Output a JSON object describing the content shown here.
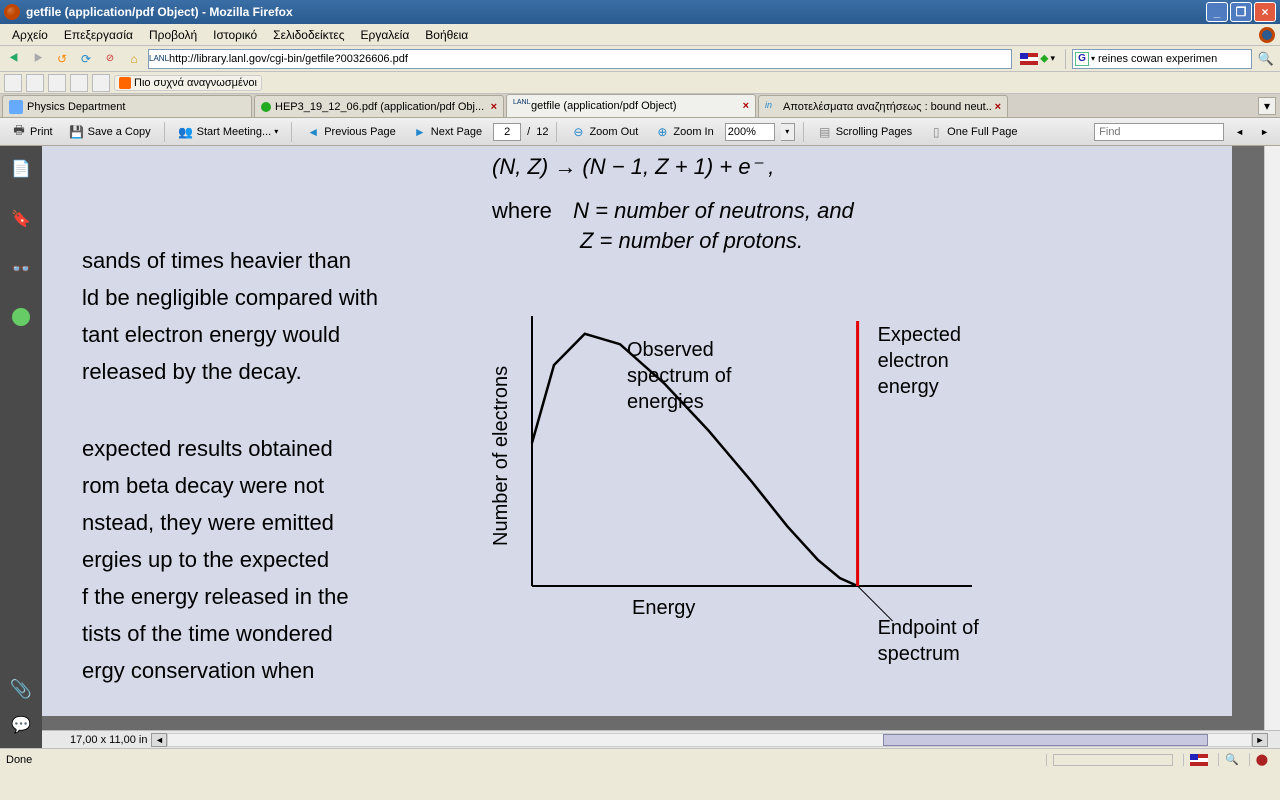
{
  "window": {
    "title": "getfile (application/pdf Object) - Mozilla Firefox"
  },
  "menu": {
    "items": [
      "Αρχείο",
      "Επεξεργασία",
      "Προβολή",
      "Ιστορικό",
      "Σελιδοδείκτες",
      "Εργαλεία",
      "Βοήθεια"
    ]
  },
  "nav": {
    "url": "http://library.lanl.gov/cgi-bin/getfile?00326606.pdf",
    "search_value": "reines cowan experimen"
  },
  "bookmarks": {
    "item_label": "Πιο συχνά αναγνωσμένοι"
  },
  "tabs": [
    {
      "label": "Physics Department",
      "icon": "phys",
      "active": false,
      "closable": false
    },
    {
      "label": "HEP3_19_12_06.pdf (application/pdf Obj...",
      "icon": "dot",
      "active": false,
      "closable": true
    },
    {
      "label": "getfile (application/pdf Object)",
      "icon": "lanl",
      "active": true,
      "closable": true
    },
    {
      "label": "Αποτελέσματα αναζητήσεως : bound neut...",
      "icon": "in",
      "active": false,
      "closable": true
    }
  ],
  "pdf_toolbar": {
    "print": "Print",
    "save": "Save a Copy",
    "meeting": "Start Meeting...",
    "prev": "Previous Page",
    "next": "Next Page",
    "page_current": "2",
    "page_total": "12",
    "zoom_out": "Zoom Out",
    "zoom_in": "Zoom In",
    "zoom_value": "200%",
    "scrolling": "Scrolling Pages",
    "onefull": "One Full Page",
    "find_placeholder": "Find"
  },
  "document": {
    "formula": "(N, Z) → (N − 1, Z + 1) + e⁻ ,",
    "where_label": "where",
    "where_n": "N = number of neutrons, and",
    "where_z": "Z = number of protons.",
    "para1": [
      "sands of times heavier than",
      "ld be negligible compared with",
      "tant electron energy would",
      "released by the decay."
    ],
    "para2": [
      "expected results obtained",
      "rom beta decay were not",
      "nstead, they were emitted",
      "ergies up to the expected",
      "f the energy released in the",
      "tists of the time wondered",
      "ergy conservation when"
    ],
    "chart": {
      "type": "line",
      "xlabel": "Energy",
      "ylabel": "Number of electrons",
      "label_fontsize": 20,
      "curve_label": "Observed\nspectrum of\nenergies",
      "expected_label": "Expected\nelectron\nenergy",
      "endpoint_label": "Endpoint of\nspectrum",
      "axis_color": "#000000",
      "curve_color": "#000000",
      "expected_line_color": "#e40000",
      "background_color": "#d5d9e8",
      "curve_points": [
        [
          0,
          0.55
        ],
        [
          0.05,
          0.85
        ],
        [
          0.12,
          0.97
        ],
        [
          0.2,
          0.93
        ],
        [
          0.3,
          0.78
        ],
        [
          0.4,
          0.6
        ],
        [
          0.5,
          0.4
        ],
        [
          0.58,
          0.23
        ],
        [
          0.65,
          0.1
        ],
        [
          0.7,
          0.03
        ],
        [
          0.74,
          0.0
        ]
      ],
      "expected_x": 0.74,
      "xrange": [
        0,
        1.0
      ],
      "yrange": [
        0,
        1.0
      ],
      "line_width": 2.5,
      "expected_line_width": 3
    },
    "dimensions": "17,00 x 11,00 in",
    "hscroll": {
      "thumb_left_pct": 66,
      "thumb_width_pct": 30
    }
  },
  "status": {
    "text": "Done"
  }
}
